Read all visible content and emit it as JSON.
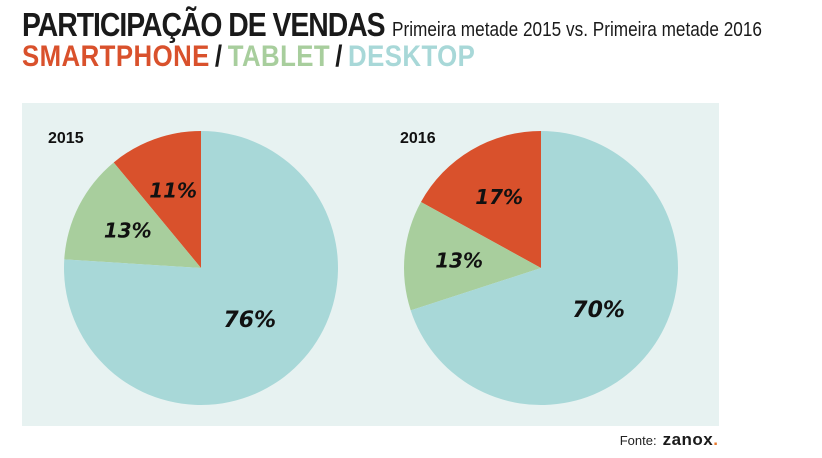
{
  "header": {
    "title": "PARTICIPAÇÃO DE VENDAS",
    "subtitle": "Primeira metade 2015 vs. Primeira metade 2016",
    "legend": [
      {
        "label": "SMARTPHONE",
        "color": "#d9512c"
      },
      {
        "label": "TABLET",
        "color": "#a8ce9d"
      },
      {
        "label": "DESKTOP",
        "color": "#a8d8d8"
      }
    ],
    "separator": "/"
  },
  "source": {
    "label": "Fonte:",
    "logo_text": "zanox",
    "logo_dot": ".",
    "logo_dot_color": "#e8782b"
  },
  "colors": {
    "panel_bg": "#e7f2f1",
    "smartphone": "#d9512c",
    "tablet": "#a8ce9d",
    "desktop": "#a8d8d8"
  },
  "chart_data": [
    {
      "type": "pie",
      "title": "2015",
      "categories": [
        "SMARTPHONE",
        "TABLET",
        "DESKTOP"
      ],
      "values": [
        11,
        13,
        76
      ],
      "labels": [
        "11%",
        "13%",
        "76%"
      ]
    },
    {
      "type": "pie",
      "title": "2016",
      "categories": [
        "SMARTPHONE",
        "TABLET",
        "DESKTOP"
      ],
      "values": [
        17,
        13,
        70
      ],
      "labels": [
        "17%",
        "13%",
        "70%"
      ]
    }
  ]
}
